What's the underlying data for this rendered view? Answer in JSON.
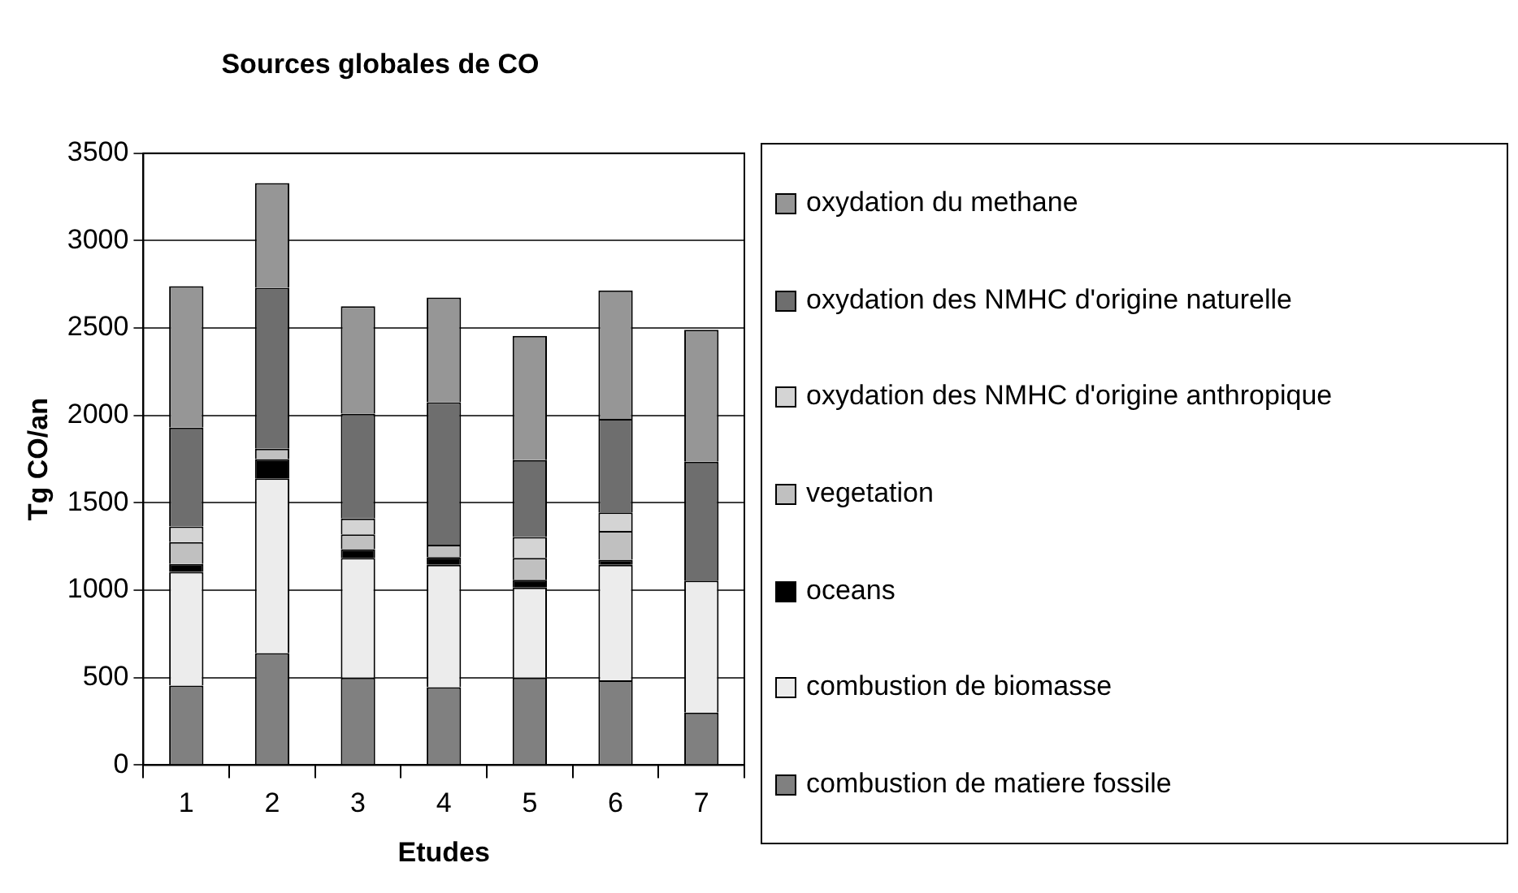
{
  "chart_data": {
    "type": "bar",
    "title": "Sources globales de CO",
    "xlabel": "Etudes",
    "ylabel": "Tg CO/an",
    "categories": [
      "1",
      "2",
      "3",
      "4",
      "5",
      "6",
      "7"
    ],
    "stacked": true,
    "ylim": [
      0,
      3500
    ],
    "yticks": [
      0,
      500,
      1000,
      1500,
      2000,
      2500,
      3000,
      3500
    ],
    "grid": "y",
    "legend": "right",
    "series": [
      {
        "name": "combustion de matiere fossile",
        "color": "#808080",
        "values": [
          455,
          640,
          500,
          445,
          500,
          485,
          300
        ]
      },
      {
        "name": "combustion de biomasse",
        "color": "#ececec",
        "values": [
          650,
          1000,
          685,
          700,
          515,
          660,
          755
        ]
      },
      {
        "name": "oceans",
        "color": "#000000",
        "values": [
          45,
          110,
          50,
          45,
          45,
          30,
          0
        ]
      },
      {
        "name": "vegetation",
        "color": "#c0c0c0",
        "values": [
          125,
          60,
          85,
          70,
          125,
          165,
          0
        ]
      },
      {
        "name": "oxydation des NMHC d'origine anthropique",
        "color": "#d4d4d4",
        "values": [
          90,
          0,
          90,
          0,
          120,
          105,
          0
        ]
      },
      {
        "name": "oxydation des NMHC d'origine naturelle",
        "color": "#6e6e6e",
        "values": [
          565,
          920,
          600,
          815,
          440,
          535,
          680
        ]
      },
      {
        "name": "oxydation du methane",
        "color": "#969696",
        "values": [
          810,
          600,
          615,
          600,
          710,
          735,
          755
        ]
      }
    ]
  }
}
